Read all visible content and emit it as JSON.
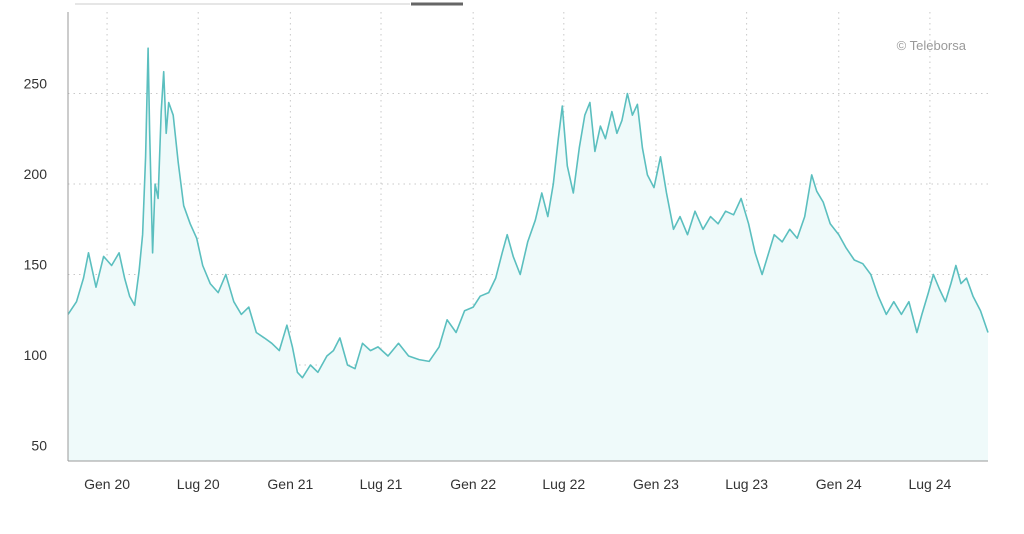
{
  "watermark": "© Teleborsa",
  "colors": {
    "line": "#5bbfbf",
    "fill": "#effafa",
    "grid": "#c8c8c8",
    "axis": "#999999",
    "text": "#333333",
    "tab_light": "#e6e6e6",
    "tab_dark": "#666666"
  },
  "chart_data": {
    "type": "area",
    "title": "",
    "xlabel": "",
    "ylabel": "",
    "ylim": [
      47,
      295
    ],
    "y_ticks": [
      50,
      100,
      150,
      200,
      250
    ],
    "x_ticks": [
      "Gen 20",
      "Lug 20",
      "Gen 21",
      "Lug 21",
      "Gen 22",
      "Lug 22",
      "Gen 23",
      "Lug 23",
      "Gen 24",
      "Lug 24"
    ],
    "x_range": [
      "2019-10-15",
      "2024-10-25"
    ],
    "grid": true,
    "series": [
      {
        "values": [
          [
            "2019-10-15",
            128
          ],
          [
            "2019-11-01",
            135
          ],
          [
            "2019-11-15",
            148
          ],
          [
            "2019-11-25",
            162
          ],
          [
            "2019-12-10",
            143
          ],
          [
            "2019-12-25",
            160
          ],
          [
            "2020-01-10",
            155
          ],
          [
            "2020-01-25",
            162
          ],
          [
            "2020-02-05",
            148
          ],
          [
            "2020-02-15",
            138
          ],
          [
            "2020-02-25",
            133
          ],
          [
            "2020-03-05",
            152
          ],
          [
            "2020-03-12",
            172
          ],
          [
            "2020-03-18",
            215
          ],
          [
            "2020-03-23",
            275
          ],
          [
            "2020-03-26",
            230
          ],
          [
            "2020-04-01",
            162
          ],
          [
            "2020-04-06",
            200
          ],
          [
            "2020-04-12",
            192
          ],
          [
            "2020-04-18",
            240
          ],
          [
            "2020-04-23",
            262
          ],
          [
            "2020-04-28",
            228
          ],
          [
            "2020-05-03",
            245
          ],
          [
            "2020-05-12",
            238
          ],
          [
            "2020-05-22",
            212
          ],
          [
            "2020-06-02",
            188
          ],
          [
            "2020-06-15",
            178
          ],
          [
            "2020-06-28",
            170
          ],
          [
            "2020-07-10",
            155
          ],
          [
            "2020-07-25",
            145
          ],
          [
            "2020-08-10",
            140
          ],
          [
            "2020-08-25",
            150
          ],
          [
            "2020-09-10",
            135
          ],
          [
            "2020-09-25",
            128
          ],
          [
            "2020-10-10",
            132
          ],
          [
            "2020-10-25",
            118
          ],
          [
            "2020-11-10",
            115
          ],
          [
            "2020-11-25",
            112
          ],
          [
            "2020-12-10",
            108
          ],
          [
            "2020-12-25",
            122
          ],
          [
            "2021-01-05",
            110
          ],
          [
            "2021-01-15",
            96
          ],
          [
            "2021-01-25",
            93
          ],
          [
            "2021-02-10",
            100
          ],
          [
            "2021-02-25",
            96
          ],
          [
            "2021-03-15",
            105
          ],
          [
            "2021-03-28",
            108
          ],
          [
            "2021-04-10",
            115
          ],
          [
            "2021-04-25",
            100
          ],
          [
            "2021-05-10",
            98
          ],
          [
            "2021-05-25",
            112
          ],
          [
            "2021-06-10",
            108
          ],
          [
            "2021-06-25",
            110
          ],
          [
            "2021-07-15",
            105
          ],
          [
            "2021-08-05",
            112
          ],
          [
            "2021-08-25",
            105
          ],
          [
            "2021-09-15",
            103
          ],
          [
            "2021-10-05",
            102
          ],
          [
            "2021-10-25",
            110
          ],
          [
            "2021-11-10",
            125
          ],
          [
            "2021-11-28",
            118
          ],
          [
            "2021-12-15",
            130
          ],
          [
            "2022-01-01",
            132
          ],
          [
            "2022-01-15",
            138
          ],
          [
            "2022-02-01",
            140
          ],
          [
            "2022-02-15",
            148
          ],
          [
            "2022-02-28",
            162
          ],
          [
            "2022-03-10",
            172
          ],
          [
            "2022-03-22",
            160
          ],
          [
            "2022-04-05",
            150
          ],
          [
            "2022-04-20",
            168
          ],
          [
            "2022-05-05",
            180
          ],
          [
            "2022-05-18",
            195
          ],
          [
            "2022-05-30",
            182
          ],
          [
            "2022-06-10",
            200
          ],
          [
            "2022-06-20",
            225
          ],
          [
            "2022-06-28",
            243
          ],
          [
            "2022-07-08",
            210
          ],
          [
            "2022-07-20",
            195
          ],
          [
            "2022-08-01",
            220
          ],
          [
            "2022-08-12",
            238
          ],
          [
            "2022-08-22",
            245
          ],
          [
            "2022-09-01",
            218
          ],
          [
            "2022-09-12",
            232
          ],
          [
            "2022-09-22",
            225
          ],
          [
            "2022-10-05",
            240
          ],
          [
            "2022-10-15",
            228
          ],
          [
            "2022-10-25",
            235
          ],
          [
            "2022-11-05",
            250
          ],
          [
            "2022-11-15",
            238
          ],
          [
            "2022-11-25",
            244
          ],
          [
            "2022-12-05",
            220
          ],
          [
            "2022-12-15",
            205
          ],
          [
            "2022-12-28",
            198
          ],
          [
            "2023-01-10",
            215
          ],
          [
            "2023-01-22",
            195
          ],
          [
            "2023-02-05",
            175
          ],
          [
            "2023-02-18",
            182
          ],
          [
            "2023-03-05",
            172
          ],
          [
            "2023-03-20",
            185
          ],
          [
            "2023-04-05",
            175
          ],
          [
            "2023-04-20",
            182
          ],
          [
            "2023-05-05",
            178
          ],
          [
            "2023-05-20",
            185
          ],
          [
            "2023-06-05",
            183
          ],
          [
            "2023-06-20",
            192
          ],
          [
            "2023-07-05",
            178
          ],
          [
            "2023-07-18",
            162
          ],
          [
            "2023-08-01",
            150
          ],
          [
            "2023-08-12",
            160
          ],
          [
            "2023-08-25",
            172
          ],
          [
            "2023-09-10",
            168
          ],
          [
            "2023-09-25",
            175
          ],
          [
            "2023-10-10",
            170
          ],
          [
            "2023-10-25",
            182
          ],
          [
            "2023-11-08",
            205
          ],
          [
            "2023-11-18",
            196
          ],
          [
            "2023-12-01",
            190
          ],
          [
            "2023-12-15",
            178
          ],
          [
            "2024-01-01",
            172
          ],
          [
            "2024-01-15",
            165
          ],
          [
            "2024-02-01",
            158
          ],
          [
            "2024-02-18",
            156
          ],
          [
            "2024-03-05",
            150
          ],
          [
            "2024-03-20",
            138
          ],
          [
            "2024-04-05",
            128
          ],
          [
            "2024-04-20",
            135
          ],
          [
            "2024-05-05",
            128
          ],
          [
            "2024-05-20",
            135
          ],
          [
            "2024-06-05",
            118
          ],
          [
            "2024-06-15",
            128
          ],
          [
            "2024-06-28",
            140
          ],
          [
            "2024-07-08",
            150
          ],
          [
            "2024-07-20",
            142
          ],
          [
            "2024-08-01",
            135
          ],
          [
            "2024-08-12",
            145
          ],
          [
            "2024-08-22",
            155
          ],
          [
            "2024-09-01",
            145
          ],
          [
            "2024-09-12",
            148
          ],
          [
            "2024-09-25",
            138
          ],
          [
            "2024-10-10",
            130
          ],
          [
            "2024-10-25",
            118
          ]
        ]
      }
    ]
  }
}
